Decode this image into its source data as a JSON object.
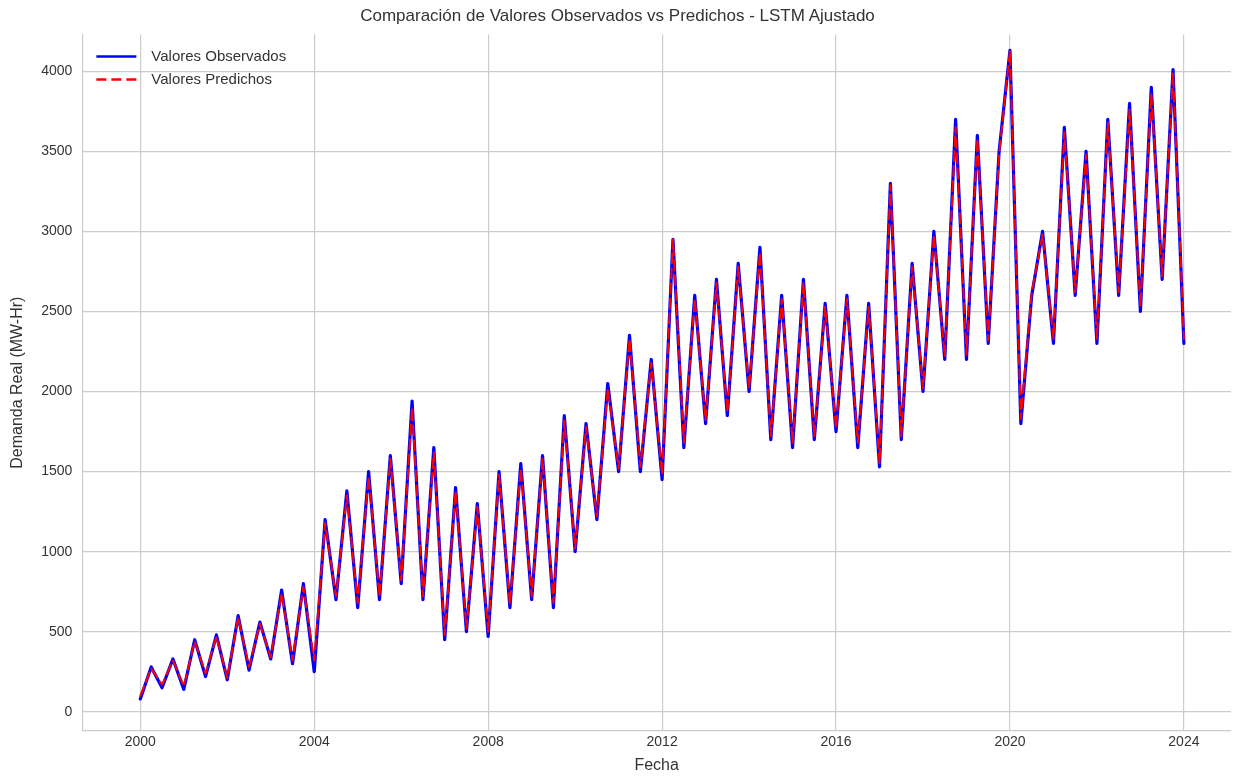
{
  "chart_data": {
    "type": "line",
    "title": "Comparación de Valores Observados vs Predichos - LSTM Ajustado",
    "xlabel": "Fecha",
    "ylabel": "Demanda Real (MW-Hr)",
    "x": [
      "2000-01",
      "2000-04",
      "2000-07",
      "2000-10",
      "2001-01",
      "2001-04",
      "2001-07",
      "2001-10",
      "2002-01",
      "2002-04",
      "2002-07",
      "2002-10",
      "2003-01",
      "2003-04",
      "2003-07",
      "2003-10",
      "2004-01",
      "2004-04",
      "2004-07",
      "2004-10",
      "2005-01",
      "2005-04",
      "2005-07",
      "2005-10",
      "2006-01",
      "2006-04",
      "2006-07",
      "2006-10",
      "2007-01",
      "2007-04",
      "2007-07",
      "2007-10",
      "2008-01",
      "2008-04",
      "2008-07",
      "2008-10",
      "2009-01",
      "2009-04",
      "2009-07",
      "2009-10",
      "2010-01",
      "2010-04",
      "2010-07",
      "2010-10",
      "2011-01",
      "2011-04",
      "2011-07",
      "2011-10",
      "2012-01",
      "2012-04",
      "2012-07",
      "2012-10",
      "2013-01",
      "2013-04",
      "2013-07",
      "2013-10",
      "2014-01",
      "2014-04",
      "2014-07",
      "2014-10",
      "2015-01",
      "2015-04",
      "2015-07",
      "2015-10",
      "2016-01",
      "2016-04",
      "2016-07",
      "2016-10",
      "2017-01",
      "2017-04",
      "2017-07",
      "2017-10",
      "2018-01",
      "2018-04",
      "2018-07",
      "2018-10",
      "2019-01",
      "2019-04",
      "2019-07",
      "2019-10",
      "2020-01",
      "2020-04",
      "2020-07",
      "2020-10",
      "2021-01",
      "2021-04",
      "2021-07",
      "2021-10",
      "2022-01",
      "2022-04",
      "2022-07",
      "2022-10",
      "2023-01",
      "2023-04",
      "2023-07",
      "2023-10",
      "2024-01"
    ],
    "series": [
      {
        "name": "Valores Observados",
        "color": "#0000ff",
        "line_style": "solid",
        "values": [
          80,
          280,
          150,
          330,
          140,
          450,
          220,
          480,
          200,
          600,
          260,
          560,
          330,
          760,
          300,
          800,
          250,
          1200,
          700,
          1380,
          650,
          1500,
          700,
          1600,
          800,
          1940,
          700,
          1650,
          450,
          1400,
          500,
          1300,
          470,
          1500,
          650,
          1550,
          700,
          1600,
          650,
          1850,
          1000,
          1800,
          1200,
          2050,
          1500,
          2350,
          1500,
          2200,
          1450,
          2950,
          1650,
          2600,
          1800,
          2700,
          1850,
          2800,
          2000,
          2900,
          1700,
          2600,
          1650,
          2700,
          1700,
          2550,
          1750,
          2600,
          1650,
          2550,
          1530,
          3300,
          1700,
          2800,
          2000,
          3000,
          2200,
          3700,
          2200,
          3600,
          2300,
          3500,
          4130,
          1800,
          2600,
          3000,
          2300,
          3650,
          2600,
          3500,
          2300,
          3700,
          2600,
          3800,
          2500,
          3900,
          2700,
          4010,
          2300
        ]
      },
      {
        "name": "Valores Predichos",
        "color": "#ff0000",
        "line_style": "dashed",
        "values": [
          100,
          270,
          170,
          320,
          160,
          440,
          240,
          470,
          210,
          590,
          280,
          550,
          340,
          740,
          320,
          780,
          320,
          1180,
          720,
          1350,
          680,
          1470,
          720,
          1580,
          820,
          1900,
          720,
          1620,
          480,
          1380,
          520,
          1280,
          500,
          1480,
          670,
          1520,
          720,
          1580,
          680,
          1820,
          1020,
          1780,
          1220,
          2020,
          1520,
          2330,
          1530,
          2180,
          1480,
          2950,
          1680,
          2580,
          1820,
          2680,
          1870,
          2780,
          2020,
          2870,
          1720,
          2580,
          1680,
          2680,
          1720,
          2530,
          1770,
          2580,
          1680,
          2530,
          1550,
          3290,
          1720,
          2780,
          2020,
          2980,
          2220,
          3650,
          2230,
          3580,
          2320,
          3480,
          4130,
          1830,
          2620,
          2980,
          2330,
          3620,
          2620,
          3480,
          2330,
          3680,
          2620,
          3760,
          2530,
          3860,
          2720,
          3990,
          2330
        ]
      }
    ],
    "xlim": [
      "1998-09",
      "2025-02"
    ],
    "xticks": [
      "2000",
      "2004",
      "2008",
      "2012",
      "2016",
      "2020",
      "2024"
    ],
    "ylim": [
      -120,
      4230
    ],
    "yticks": [
      0,
      500,
      1000,
      1500,
      2000,
      2500,
      3000,
      3500,
      4000
    ],
    "grid": true,
    "legend": "top left",
    "marker": "none"
  }
}
